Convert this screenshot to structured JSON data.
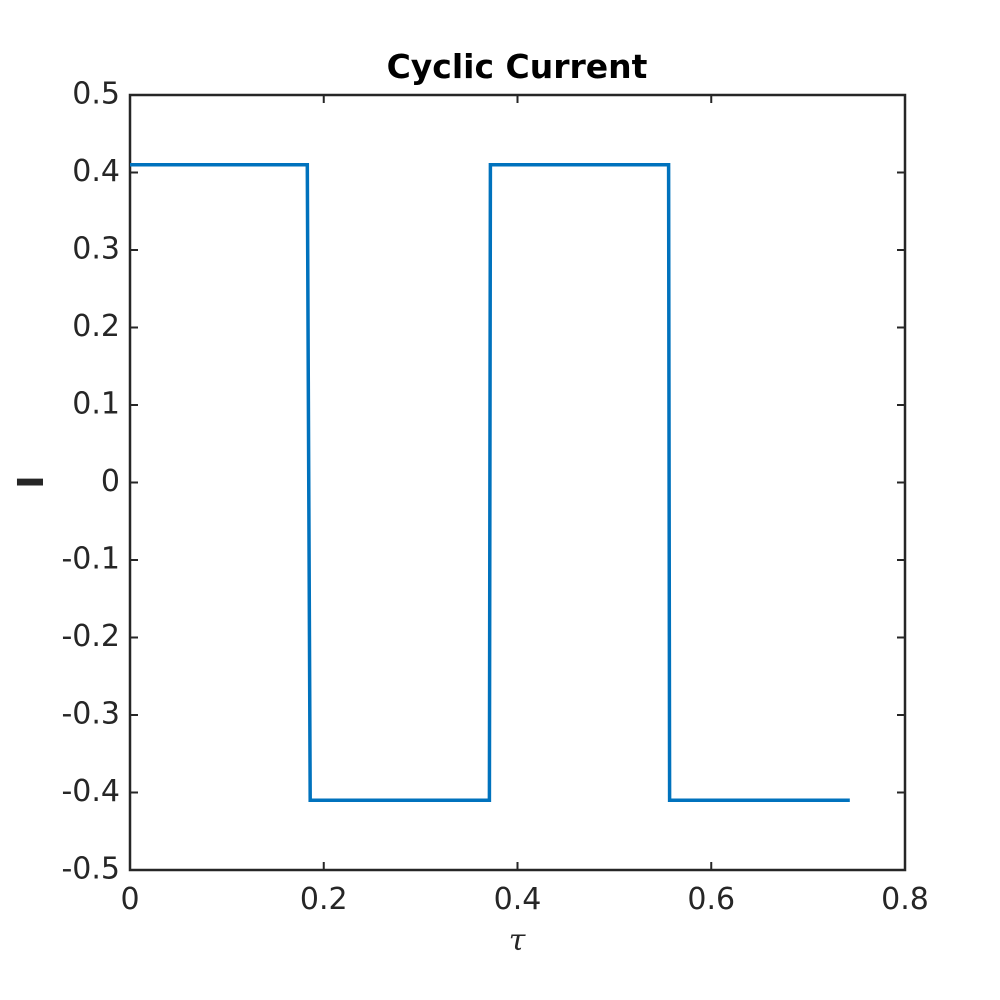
{
  "chart_data": {
    "type": "line",
    "title": "Cyclic Current",
    "xlabel": "τ",
    "ylabel": "I",
    "xlim": [
      0,
      0.8
    ],
    "ylim": [
      -0.5,
      0.5
    ],
    "x_ticks": [
      0,
      0.2,
      0.4,
      0.6,
      0.8
    ],
    "x_tick_labels": [
      "0",
      "0.2",
      "0.4",
      "0.6",
      "0.8"
    ],
    "y_ticks": [
      0.5,
      0.4,
      0.3,
      0.2,
      0.1,
      0,
      -0.1,
      -0.2,
      -0.3,
      -0.4,
      -0.5
    ],
    "y_tick_labels": [
      "0.5",
      "0.4",
      "0.3",
      "0.2",
      "0.1",
      "0",
      "-0.1",
      "-0.2",
      "-0.3",
      "-0.4",
      "-0.5"
    ],
    "grid": false,
    "series": [
      {
        "color": "#0072BD",
        "x": [
          0,
          0.183,
          0.186,
          0.371,
          0.372,
          0.556,
          0.557,
          0.743
        ],
        "y": [
          0.41,
          0.41,
          -0.41,
          -0.41,
          0.41,
          0.41,
          -0.41,
          -0.41
        ]
      }
    ]
  }
}
